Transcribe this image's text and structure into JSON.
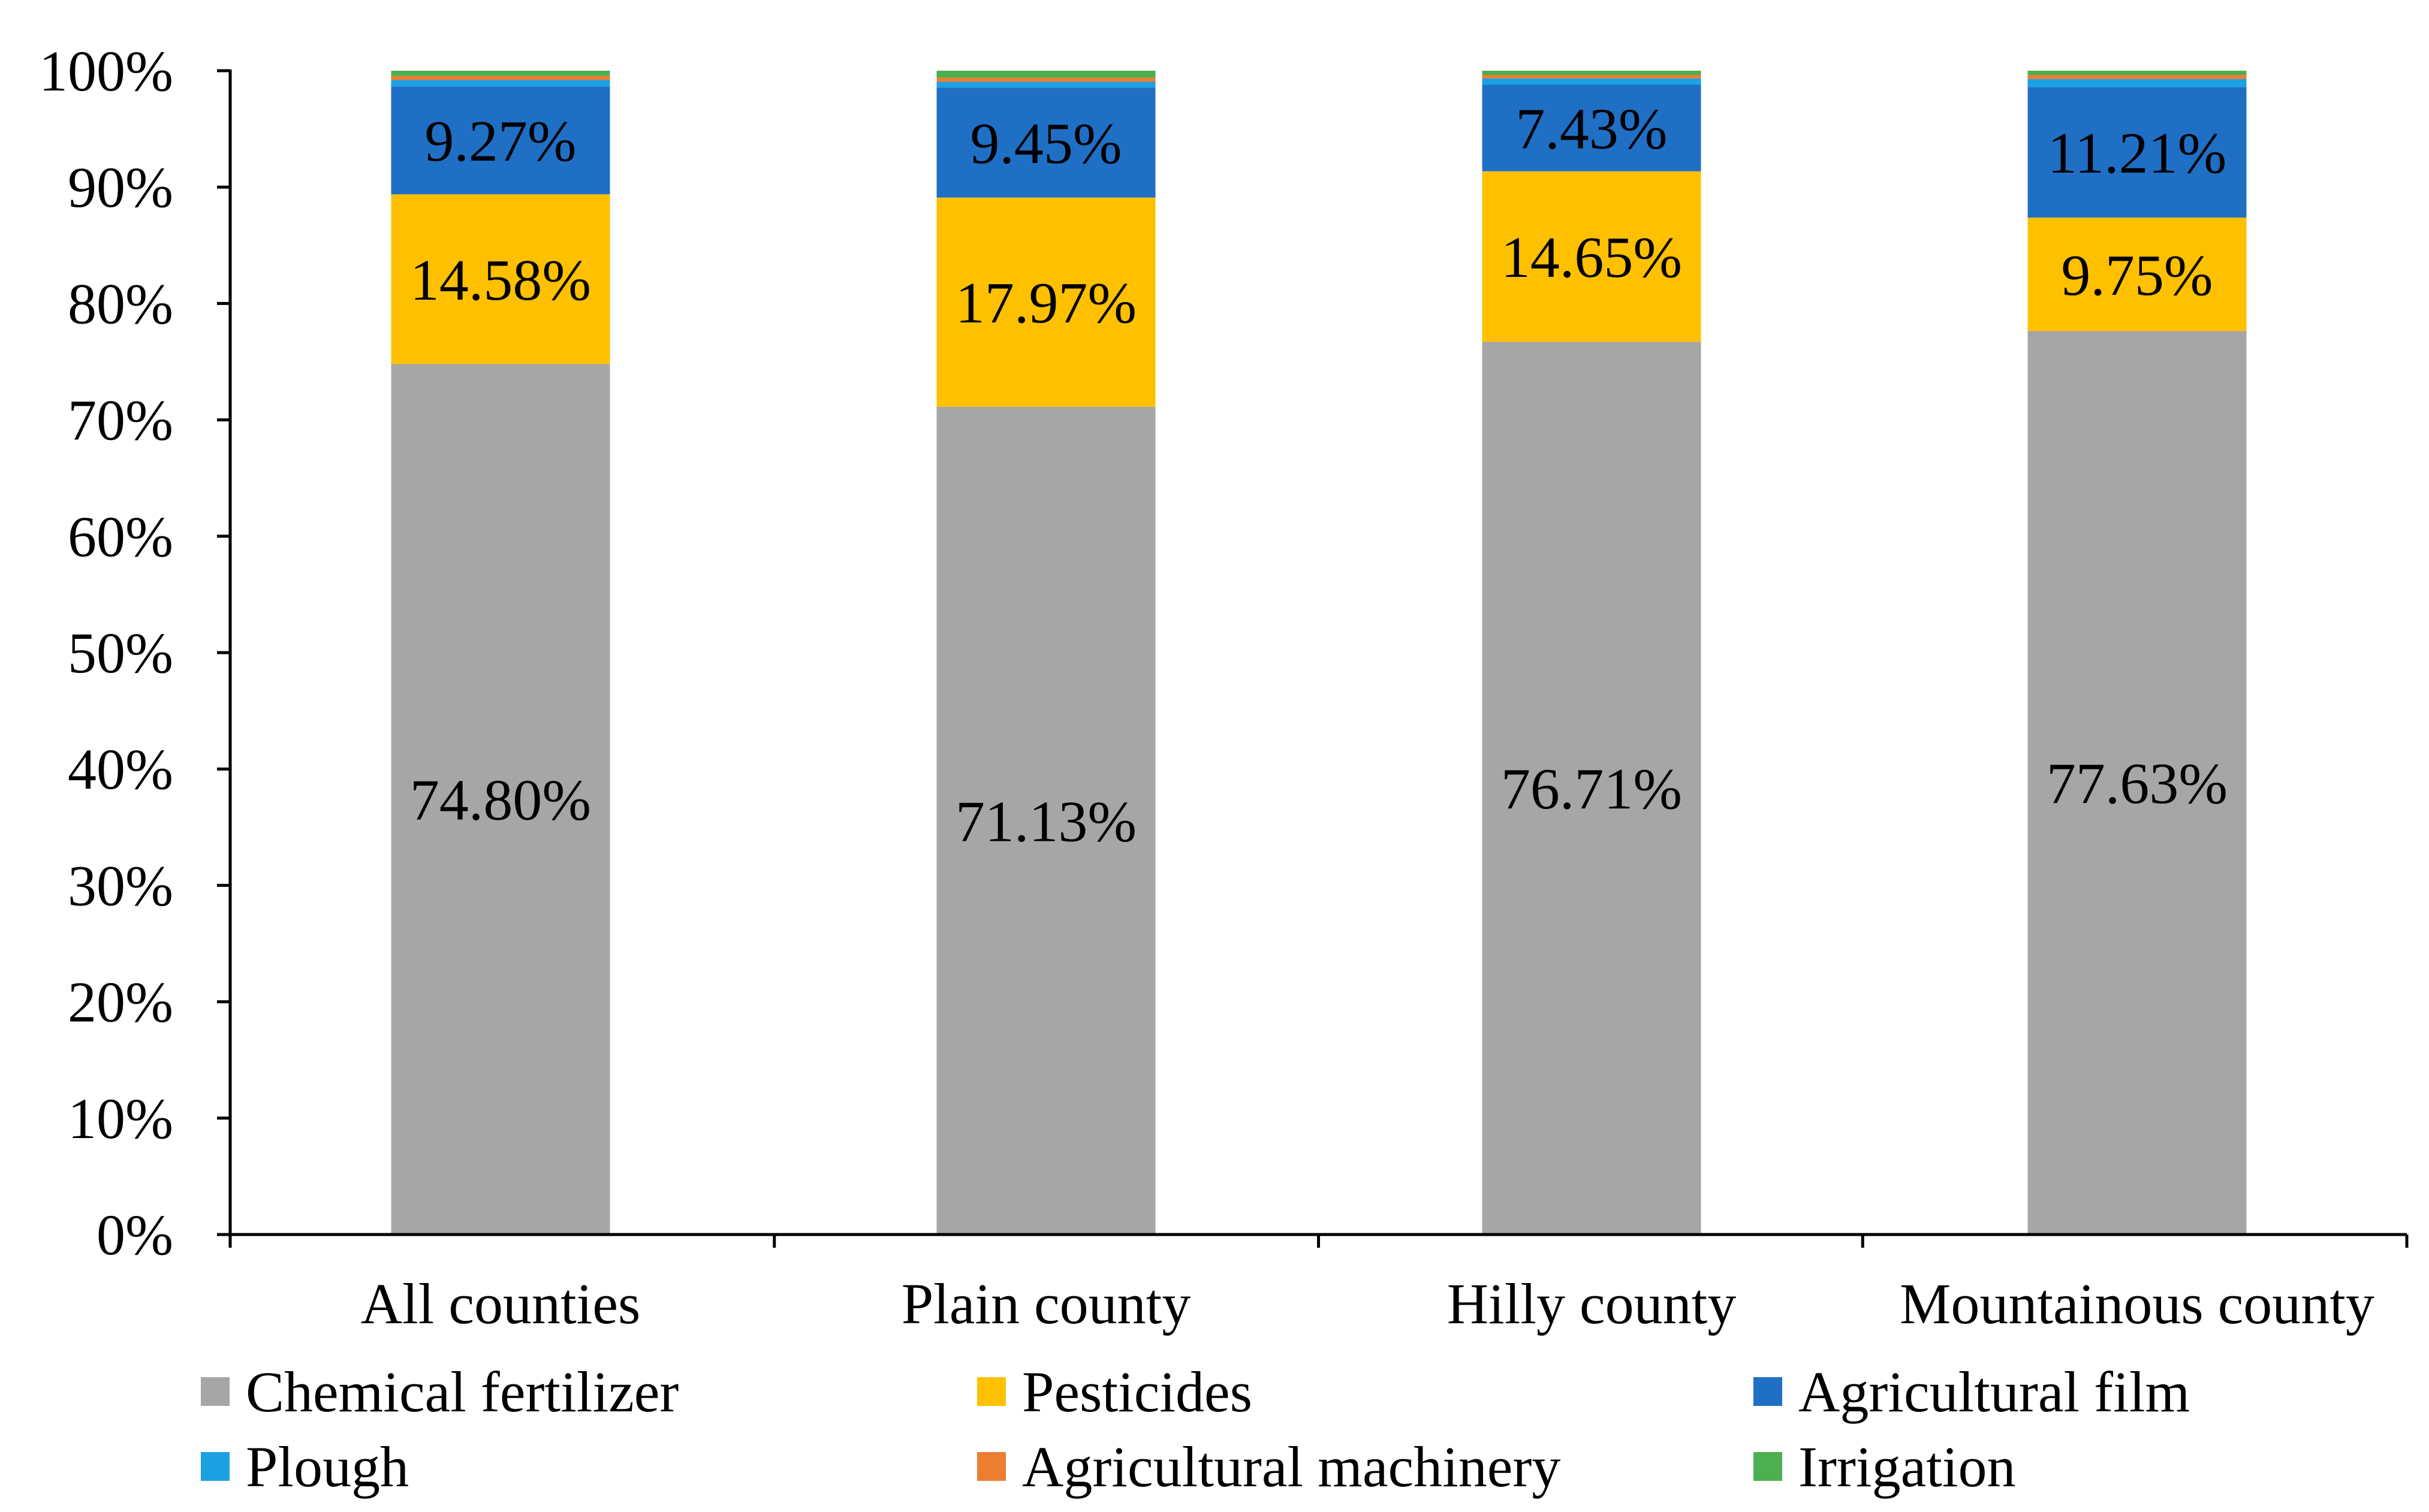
{
  "chart_data": {
    "type": "bar",
    "stacked": true,
    "percent": true,
    "title": "",
    "xlabel": "",
    "ylabel": "",
    "ylim": [
      0,
      100
    ],
    "yticks": [
      "0%",
      "10%",
      "20%",
      "30%",
      "40%",
      "50%",
      "60%",
      "70%",
      "80%",
      "90%",
      "100%"
    ],
    "categories": [
      "All counties",
      "Plain county",
      "Hilly county",
      "Mountainous county"
    ],
    "series": [
      {
        "name": "Chemical fertilizer",
        "color": "#A6A6A6",
        "values": [
          74.8,
          71.13,
          76.71,
          77.63
        ],
        "labels": [
          "74.80%",
          "71.13%",
          "76.71%",
          "77.63%"
        ]
      },
      {
        "name": "Pesticides",
        "color": "#FFC000",
        "values": [
          14.58,
          17.97,
          14.65,
          9.75
        ],
        "labels": [
          "14.58%",
          "17.97%",
          "14.65%",
          "9.75%"
        ]
      },
      {
        "name": "Agricultural film",
        "color": "#1F6FC5",
        "values": [
          9.27,
          9.45,
          7.43,
          11.21
        ],
        "labels": [
          "9.27%",
          "9.45%",
          "7.43%",
          "11.21%"
        ]
      },
      {
        "name": "Plough",
        "color": "#1BA1E2",
        "values": [
          0.55,
          0.5,
          0.55,
          0.7
        ],
        "labels": [
          "",
          "",
          "",
          ""
        ]
      },
      {
        "name": "Agricultural machinery",
        "color": "#ED7D31",
        "values": [
          0.35,
          0.35,
          0.3,
          0.35
        ],
        "labels": [
          "",
          "",
          "",
          ""
        ]
      },
      {
        "name": "Irrigation",
        "color": "#4CAF50",
        "values": [
          0.45,
          0.6,
          0.36,
          0.36
        ],
        "labels": [
          "",
          "",
          "",
          ""
        ]
      }
    ],
    "legend": {
      "position": "bottom",
      "columns": 3
    }
  }
}
